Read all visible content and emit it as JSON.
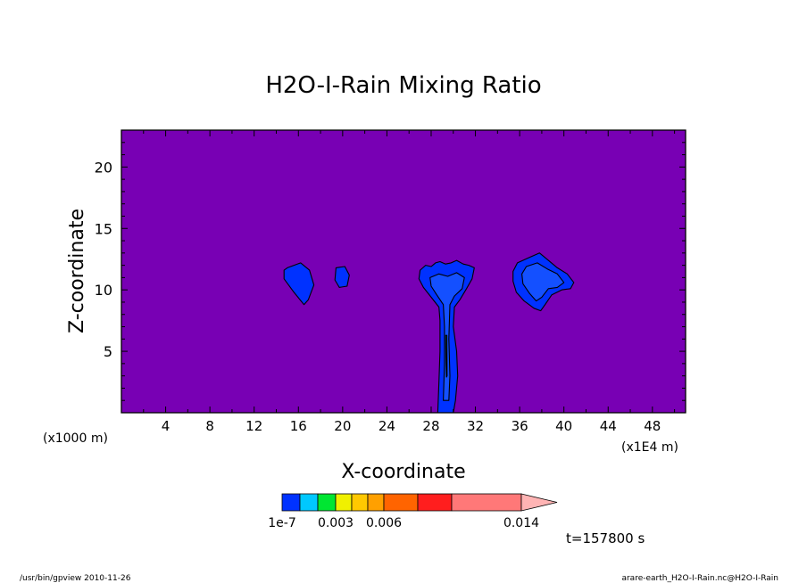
{
  "chart_data": {
    "type": "heatmap",
    "title": "H2O-I-Rain Mixing Ratio",
    "xlabel": "X-coordinate",
    "ylabel": "Z-coordinate",
    "x_unit_left": "(x1000 m)",
    "x_unit_right": "(x1E4 m)",
    "xlim": [
      0,
      51
    ],
    "ylim": [
      0,
      23
    ],
    "x_ticks": [
      4,
      8,
      12,
      16,
      20,
      24,
      28,
      32,
      36,
      40,
      44,
      48
    ],
    "y_ticks": [
      5,
      10,
      15,
      20
    ],
    "background_color": "#7800b4",
    "contour_line_color": "#000000",
    "colorbar": {
      "colors": [
        "#0032ff",
        "#00c8ff",
        "#00e632",
        "#f0f000",
        "#ffc800",
        "#ffa000",
        "#ff6400",
        "#ff1e1e",
        "#ff7878",
        "#ffb4b4"
      ],
      "labels": [
        "1e-7",
        "0.003",
        "0.006",
        "0.014"
      ],
      "label_positions": [
        1e-07,
        0.003,
        0.006,
        0.014
      ],
      "extend": "max"
    },
    "regions": [
      {
        "name": "blob-x16",
        "level": "1e-7",
        "color": "#0032ff",
        "shape": [
          [
            15.0,
            11.8
          ],
          [
            16.2,
            12.2
          ],
          [
            17.0,
            11.6
          ],
          [
            17.4,
            10.4
          ],
          [
            16.9,
            9.2
          ],
          [
            16.5,
            8.8
          ],
          [
            15.6,
            9.8
          ],
          [
            14.7,
            10.9
          ],
          [
            14.7,
            11.6
          ]
        ]
      },
      {
        "name": "blob-x20",
        "level": "1e-7",
        "color": "#0032ff",
        "shape": [
          [
            19.4,
            11.8
          ],
          [
            20.2,
            11.9
          ],
          [
            20.6,
            11.2
          ],
          [
            20.4,
            10.3
          ],
          [
            19.7,
            10.2
          ],
          [
            19.3,
            10.8
          ]
        ]
      },
      {
        "name": "cloud-x29",
        "level": "1e-7",
        "color": "#0032ff",
        "shape": [
          [
            27.0,
            11.6
          ],
          [
            27.5,
            12.0
          ],
          [
            28.0,
            11.9
          ],
          [
            28.4,
            12.2
          ],
          [
            28.8,
            12.3
          ],
          [
            29.3,
            12.1
          ],
          [
            29.8,
            12.2
          ],
          [
            30.3,
            12.4
          ],
          [
            30.9,
            12.1
          ],
          [
            31.4,
            12.0
          ],
          [
            31.9,
            11.8
          ],
          [
            31.7,
            10.9
          ],
          [
            31.2,
            10.1
          ],
          [
            30.6,
            9.2
          ],
          [
            30.1,
            8.6
          ],
          [
            30.0,
            7.0
          ],
          [
            30.3,
            5.0
          ],
          [
            30.4,
            3.0
          ],
          [
            30.2,
            1.0
          ],
          [
            30.0,
            0.0
          ],
          [
            28.6,
            0.0
          ],
          [
            28.7,
            2.5
          ],
          [
            28.8,
            5.0
          ],
          [
            28.8,
            7.5
          ],
          [
            28.7,
            8.6
          ],
          [
            28.0,
            9.4
          ],
          [
            27.3,
            10.2
          ],
          [
            26.9,
            10.9
          ]
        ]
      },
      {
        "name": "cloud-x29-inner",
        "level": "1e-7",
        "color": "#1450ff",
        "shape": [
          [
            27.9,
            11.0
          ],
          [
            28.7,
            11.3
          ],
          [
            29.5,
            11.1
          ],
          [
            30.3,
            11.4
          ],
          [
            31.0,
            11.0
          ],
          [
            30.8,
            10.1
          ],
          [
            30.1,
            9.5
          ],
          [
            29.7,
            8.8
          ],
          [
            29.6,
            6.0
          ],
          [
            29.7,
            3.0
          ],
          [
            29.6,
            1.0
          ],
          [
            29.1,
            1.0
          ],
          [
            29.2,
            4.0
          ],
          [
            29.2,
            7.0
          ],
          [
            29.1,
            8.8
          ],
          [
            28.5,
            9.6
          ],
          [
            28.0,
            10.3
          ]
        ]
      },
      {
        "name": "cloud-x29-core",
        "level": "0.003",
        "color": "#00c8ff",
        "shape": [
          [
            29.32,
            6.3
          ],
          [
            29.42,
            6.3
          ],
          [
            29.44,
            3.0
          ],
          [
            29.38,
            2.9
          ],
          [
            29.34,
            4.5
          ]
        ]
      },
      {
        "name": "cloud-x38",
        "level": "1e-7",
        "color": "#0032ff",
        "shape": [
          [
            35.8,
            12.2
          ],
          [
            36.8,
            12.6
          ],
          [
            37.8,
            13.0
          ],
          [
            38.6,
            12.4
          ],
          [
            39.4,
            11.8
          ],
          [
            40.3,
            11.3
          ],
          [
            40.9,
            10.6
          ],
          [
            40.6,
            10.1
          ],
          [
            39.8,
            10.0
          ],
          [
            38.9,
            9.6
          ],
          [
            38.3,
            8.8
          ],
          [
            37.9,
            8.3
          ],
          [
            37.3,
            8.5
          ],
          [
            36.4,
            9.1
          ],
          [
            35.7,
            9.8
          ],
          [
            35.4,
            10.7
          ],
          [
            35.4,
            11.5
          ]
        ]
      },
      {
        "name": "cloud-x38-inner",
        "level": "1e-7",
        "color": "#1450ff",
        "shape": [
          [
            36.6,
            11.9
          ],
          [
            37.6,
            12.2
          ],
          [
            38.5,
            11.7
          ],
          [
            39.4,
            11.3
          ],
          [
            40.0,
            10.6
          ],
          [
            39.4,
            10.2
          ],
          [
            38.6,
            10.1
          ],
          [
            38.0,
            9.4
          ],
          [
            37.5,
            9.1
          ],
          [
            36.9,
            9.7
          ],
          [
            36.3,
            10.5
          ],
          [
            36.2,
            11.3
          ]
        ]
      }
    ]
  },
  "time_label": "t=157800 s",
  "footer": {
    "left": "/usr/bin/gpview  2010-11-26",
    "right": "arare-earth_H2O-I-Rain.nc@H2O-I-Rain"
  }
}
